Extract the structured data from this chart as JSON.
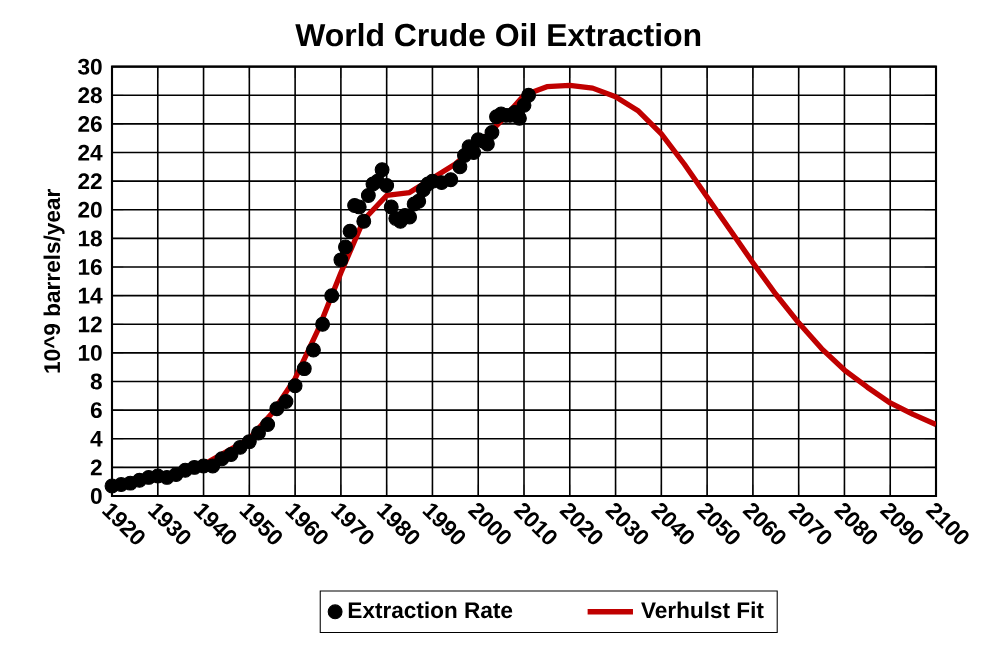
{
  "chart_data": {
    "type": "line",
    "title": "World Crude Oil Extraction",
    "ylabel": "10^9 barrels/year",
    "xlim": [
      1920,
      2100
    ],
    "xticks": [
      1920,
      1930,
      1940,
      1950,
      1960,
      1970,
      1980,
      1990,
      2000,
      2010,
      2020,
      2030,
      2040,
      2050,
      2060,
      2070,
      2080,
      2090,
      2100
    ],
    "ylim": [
      0,
      30
    ],
    "yticks": [
      0,
      2,
      4,
      6,
      8,
      10,
      12,
      14,
      16,
      18,
      20,
      22,
      24,
      26,
      28,
      30
    ],
    "grid": true,
    "legend": "bottom",
    "series": [
      {
        "name": "Extraction Rate",
        "type": "scatter",
        "marker": "circle",
        "color": "#000000",
        "x": [
          1920,
          1922,
          1924,
          1926,
          1928,
          1930,
          1932,
          1934,
          1936,
          1938,
          1940,
          1942,
          1944,
          1946,
          1948,
          1950,
          1952,
          1954,
          1956,
          1958,
          1960,
          1962,
          1964,
          1966,
          1968,
          1970,
          1971,
          1972,
          1973,
          1974,
          1975,
          1976,
          1977,
          1978,
          1979,
          1980,
          1981,
          1982,
          1983,
          1984,
          1985,
          1986,
          1987,
          1988,
          1989,
          1990,
          1992,
          1994,
          1996,
          1997,
          1998,
          1999,
          2000,
          2001,
          2002,
          2003,
          2004,
          2005,
          2006,
          2007,
          2008,
          2009,
          2010,
          2011
        ],
        "values": [
          0.7,
          0.8,
          0.9,
          1.1,
          1.3,
          1.4,
          1.3,
          1.5,
          1.8,
          2.0,
          2.1,
          2.1,
          2.6,
          2.9,
          3.4,
          3.8,
          4.4,
          5.0,
          6.1,
          6.6,
          7.7,
          8.9,
          10.2,
          12.0,
          14.0,
          16.5,
          17.4,
          18.5,
          20.3,
          20.2,
          19.2,
          21.0,
          21.8,
          22.0,
          22.8,
          21.7,
          20.2,
          19.4,
          19.2,
          19.6,
          19.5,
          20.4,
          20.6,
          21.4,
          21.8,
          22.0,
          21.9,
          22.1,
          23.0,
          23.8,
          24.4,
          24.0,
          24.9,
          24.8,
          24.6,
          25.4,
          26.5,
          26.7,
          26.6,
          26.6,
          26.8,
          26.4,
          27.3,
          28.0
        ]
      },
      {
        "name": "Verhulst Fit",
        "color": "#c00000",
        "x": [
          1920,
          1930,
          1940,
          1950,
          1955,
          1960,
          1965,
          1970,
          1975,
          1980,
          1985,
          1990,
          1995,
          2000,
          2005,
          2010,
          2015,
          2020,
          2025,
          2030,
          2035,
          2040,
          2045,
          2050,
          2055,
          2060,
          2065,
          2070,
          2075,
          2080,
          2085,
          2090,
          2095,
          2100
        ],
        "values": [
          0.6,
          1.2,
          2.2,
          4.0,
          5.8,
          8.2,
          11.6,
          15.6,
          19.3,
          21.0,
          21.2,
          22.2,
          23.2,
          24.6,
          26.2,
          28.0,
          28.6,
          28.7,
          28.5,
          27.9,
          26.9,
          25.3,
          23.2,
          20.9,
          18.6,
          16.3,
          14.1,
          12.1,
          10.3,
          8.8,
          7.6,
          6.5,
          5.7,
          5.0
        ]
      }
    ]
  }
}
